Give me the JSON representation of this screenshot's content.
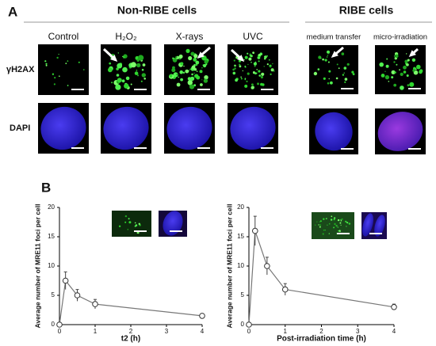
{
  "panel_labels": [
    "A",
    "B"
  ],
  "panel_a": {
    "groups": [
      "Non-RIBE cells",
      "RIBE cells"
    ],
    "columns": [
      "Control",
      "H₂O₂",
      "X-rays",
      "UVC",
      "medium transfer",
      "micro-irradiation"
    ],
    "rows": [
      "γH2AX",
      "DAPI"
    ]
  },
  "chart_data": [
    {
      "type": "line",
      "x": [
        0,
        0.17,
        0.5,
        1,
        4
      ],
      "values": [
        0,
        7.5,
        5,
        3.5,
        1.5
      ],
      "errors": [
        0,
        1.5,
        1,
        0.8,
        0.3
      ],
      "xlabel": "t2 (h)",
      "ylabel": "Average number of MRE11 foci per cell",
      "xlim": [
        0,
        4
      ],
      "ylim": [
        0,
        20
      ],
      "xticks": [
        0,
        1,
        2,
        3,
        4
      ],
      "yticks": [
        0,
        5,
        10,
        15,
        20
      ],
      "color": "#777777"
    },
    {
      "type": "line",
      "x": [
        0,
        0.17,
        0.5,
        1,
        4
      ],
      "values": [
        0,
        16,
        10,
        6,
        3
      ],
      "errors": [
        0,
        2.5,
        1.5,
        1,
        0.5
      ],
      "xlabel": "Post-irradiation time (h)",
      "ylabel": "Average number of MRE11 foci per cell",
      "xlim": [
        0,
        4
      ],
      "ylim": [
        0,
        20
      ],
      "xticks": [
        0,
        1,
        2,
        3,
        4
      ],
      "yticks": [
        0,
        5,
        10,
        15,
        20
      ],
      "color": "#777777"
    }
  ]
}
